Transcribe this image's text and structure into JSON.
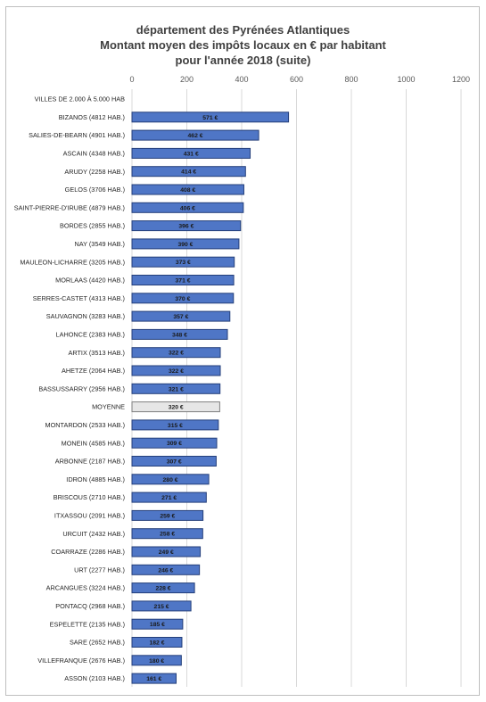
{
  "chart_data": {
    "type": "bar",
    "orientation": "horizontal",
    "title_lines": [
      "département des Pyrénées Atlantiques",
      "Montant moyen des impôts locaux en € par habitant",
      "pour l'année 2018 (suite)"
    ],
    "xlim": [
      0,
      1200
    ],
    "xticks": [
      0,
      200,
      400,
      600,
      800,
      1000,
      1200
    ],
    "xtick_labels": [
      "0",
      "200",
      "400",
      "600",
      "800",
      "1000",
      "1200"
    ],
    "axis_position": "top",
    "grid": true,
    "categories": [
      "VILLES DE 2.000 À 5.000 HAB",
      "BIZANOS (4812 HAB.)",
      "SALIES-DE-BEARN (4901 HAB.)",
      "ASCAIN (4348 HAB.)",
      "ARUDY (2258 HAB.)",
      "GELOS (3706 HAB.)",
      "SAINT-PIERRE-D'IRUBE (4879 HAB.)",
      "BORDES (2855 HAB.)",
      "NAY (3549 HAB.)",
      "MAULEON-LICHARRE (3205 HAB.)",
      "MORLAAS (4420 HAB.)",
      "SERRES-CASTET (4313 HAB.)",
      "SAUVAGNON (3283 HAB.)",
      "LAHONCE (2383 HAB.)",
      "ARTIX (3513 HAB.)",
      "AHETZE (2064 HAB.)",
      "BASSUSSARRY (2956 HAB.)",
      "MOYENNE",
      "MONTARDON (2533 HAB.)",
      "MONEIN (4585 HAB.)",
      "ARBONNE (2187 HAB.)",
      "IDRON (4885 HAB.)",
      "BRISCOUS (2710 HAB.)",
      "ITXASSOU (2091 HAB.)",
      "URCUIT (2432 HAB.)",
      "COARRAZE (2286 HAB.)",
      "URT (2277 HAB.)",
      "ARCANGUES (3224 HAB.)",
      "PONTACQ (2968 HAB.)",
      "ESPELETTE (2135 HAB.)",
      "SARE (2652 HAB.)",
      "VILLEFRANQUE (2676 HAB.)",
      "ASSON (2103 HAB.)"
    ],
    "values": [
      null,
      571,
      462,
      431,
      414,
      408,
      406,
      396,
      390,
      373,
      371,
      370,
      357,
      348,
      322,
      322,
      321,
      320,
      315,
      309,
      307,
      280,
      271,
      259,
      258,
      249,
      246,
      228,
      215,
      185,
      182,
      180,
      161
    ],
    "value_labels": [
      "",
      "571 €",
      "462 €",
      "431 €",
      "414 €",
      "408 €",
      "406 €",
      "396 €",
      "390 €",
      "373 €",
      "371 €",
      "370 €",
      "357 €",
      "348 €",
      "322 €",
      "322 €",
      "321 €",
      "320 €",
      "315 €",
      "309 €",
      "307 €",
      "280 €",
      "271 €",
      "259 €",
      "258 €",
      "249 €",
      "246 €",
      "228 €",
      "215 €",
      "185 €",
      "182 €",
      "180 €",
      "161 €"
    ],
    "highlight_category": "MOYENNE",
    "colors": {
      "bar": "#4f76c6",
      "bar_edge": "#243f7a",
      "highlight_bar": "#e6e6e6",
      "highlight_edge": "#7f7f7f",
      "grid": "#d9d9d9"
    }
  }
}
